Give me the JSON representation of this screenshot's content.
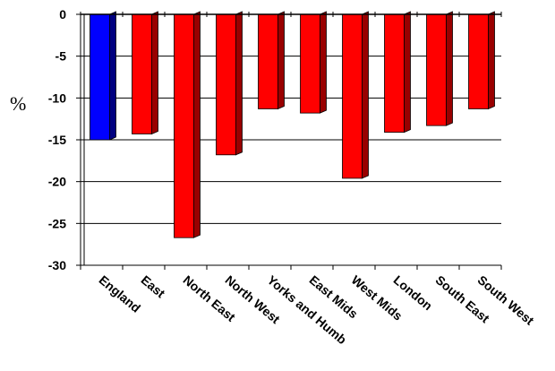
{
  "chart_data": {
    "type": "bar",
    "title": "",
    "xlabel": "",
    "ylabel": "%",
    "ylim": [
      -30,
      0
    ],
    "yticks": [
      0,
      -5,
      -10,
      -15,
      -20,
      -25,
      -30
    ],
    "grid": true,
    "categories": [
      "England",
      "East",
      "North East",
      "North West",
      "Yorks and Humb",
      "East Mids",
      "West Mids",
      "London",
      "South East",
      "South West"
    ],
    "values": [
      -15.0,
      -14.3,
      -26.7,
      -16.8,
      -11.3,
      -11.8,
      -19.6,
      -14.1,
      -13.3,
      -11.3
    ],
    "highlight_color": "#0000ff",
    "bar_color": "#ff0000",
    "bar_side_color": "#990000",
    "highlight_side_color": "#000080"
  }
}
